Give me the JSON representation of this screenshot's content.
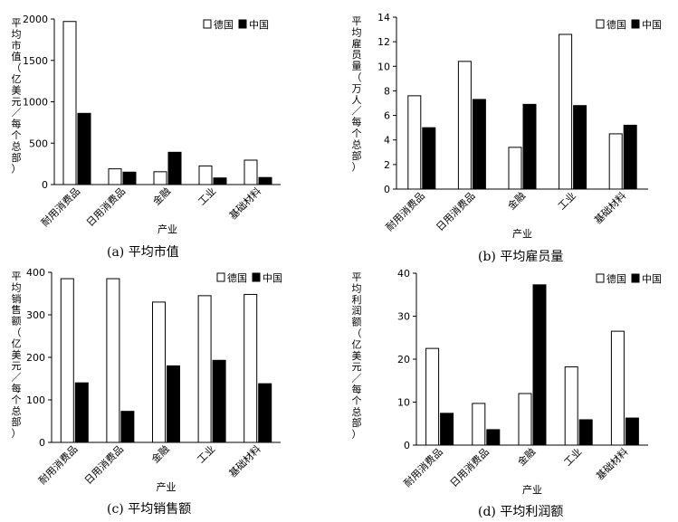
{
  "categories": [
    "耐用消费品",
    "日用消费品",
    "金融",
    "工业",
    "基础材料"
  ],
  "legend": [
    "德国",
    "中国"
  ],
  "xlabel": "产业",
  "colors": {
    "germany": "#ffffff",
    "china": "#000000",
    "axis": "#000000"
  },
  "charts": [
    {
      "caption": "(a) 平均市值",
      "chart_data": {
        "type": "bar",
        "categories": [
          "耐用消费品",
          "日用消费品",
          "金融",
          "工业",
          "基础材料"
        ],
        "series": [
          {
            "name": "德国",
            "values": [
              1970,
              190,
              155,
              225,
              295
            ]
          },
          {
            "name": "中国",
            "values": [
              860,
              150,
              390,
              80,
              85
            ]
          }
        ],
        "xlabel": "产业",
        "ylabel": "平均市值（亿美元／每个总部）",
        "ylim": [
          0,
          2000
        ],
        "yticks": [
          0,
          500,
          1000,
          1500,
          2000
        ],
        "legend_position": "top-right",
        "grid": false
      }
    },
    {
      "caption": "(b) 平均雇员量",
      "chart_data": {
        "type": "bar",
        "categories": [
          "耐用消费品",
          "日用消费品",
          "金融",
          "工业",
          "基础材料"
        ],
        "series": [
          {
            "name": "德国",
            "values": [
              7.6,
              10.4,
              3.4,
              12.6,
              4.5
            ]
          },
          {
            "name": "中国",
            "values": [
              5.0,
              7.3,
              6.9,
              6.8,
              5.2
            ]
          }
        ],
        "xlabel": "产业",
        "ylabel": "平均雇员量（万人／每个总部）",
        "ylim": [
          0,
          14
        ],
        "yticks": [
          0,
          2,
          4,
          6,
          8,
          10,
          12,
          14
        ],
        "legend_position": "top-right",
        "grid": false
      }
    },
    {
      "caption": "(c) 平均销售额",
      "chart_data": {
        "type": "bar",
        "categories": [
          "耐用消费品",
          "日用消费品",
          "金融",
          "工业",
          "基础材料"
        ],
        "series": [
          {
            "name": "德国",
            "values": [
              385,
              385,
              330,
              345,
              348
            ]
          },
          {
            "name": "中国",
            "values": [
              140,
              73,
              180,
              193,
              138
            ]
          }
        ],
        "xlabel": "产业",
        "ylabel": "平均销售额（亿美元／每个总部）",
        "ylim": [
          0,
          400
        ],
        "yticks": [
          0,
          100,
          200,
          300,
          400
        ],
        "legend_position": "top-right",
        "grid": false
      }
    },
    {
      "caption": "(d) 平均利润额",
      "chart_data": {
        "type": "bar",
        "categories": [
          "耐用消费品",
          "日用消费品",
          "金融",
          "工业",
          "基础材料"
        ],
        "series": [
          {
            "name": "德国",
            "values": [
              22.5,
              9.7,
              12.0,
              18.2,
              26.5
            ]
          },
          {
            "name": "中国",
            "values": [
              7.4,
              3.6,
              37.3,
              5.9,
              6.3
            ]
          }
        ],
        "xlabel": "产业",
        "ylabel": "平均利润额（亿美元／每个总部）",
        "ylim": [
          0,
          40
        ],
        "yticks": [
          0,
          10,
          20,
          30,
          40
        ],
        "legend_position": "top-right",
        "grid": false
      }
    }
  ]
}
